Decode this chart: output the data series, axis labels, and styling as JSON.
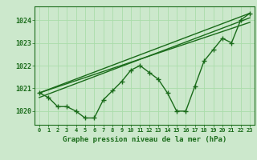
{
  "background_color": "#cce8cc",
  "plot_bg_color": "#cce8cc",
  "grid_color": "#aaddaa",
  "line_color": "#1a6b1a",
  "title": "Graphe pression niveau de la mer (hPa)",
  "xlim": [
    -0.5,
    23.5
  ],
  "ylim": [
    1019.4,
    1024.6
  ],
  "yticks": [
    1020,
    1021,
    1022,
    1023,
    1024
  ],
  "xticks": [
    0,
    1,
    2,
    3,
    4,
    5,
    6,
    7,
    8,
    9,
    10,
    11,
    12,
    13,
    14,
    15,
    16,
    17,
    18,
    19,
    20,
    21,
    22,
    23
  ],
  "series1": [
    1020.8,
    1020.6,
    1020.2,
    1020.2,
    1020.0,
    1019.7,
    1019.7,
    1020.5,
    1020.9,
    1021.3,
    1021.8,
    1022.0,
    1021.7,
    1021.4,
    1020.8,
    1020.0,
    1020.0,
    1021.1,
    1022.2,
    1022.7,
    1023.2,
    1023.0,
    1024.0,
    1024.3
  ],
  "series2_x": [
    0,
    23
  ],
  "series2_y": [
    1020.8,
    1024.3
  ],
  "series3_x": [
    0,
    23
  ],
  "series3_y": [
    1020.8,
    1023.9
  ],
  "series4_x": [
    0,
    23
  ],
  "series4_y": [
    1020.6,
    1024.1
  ]
}
